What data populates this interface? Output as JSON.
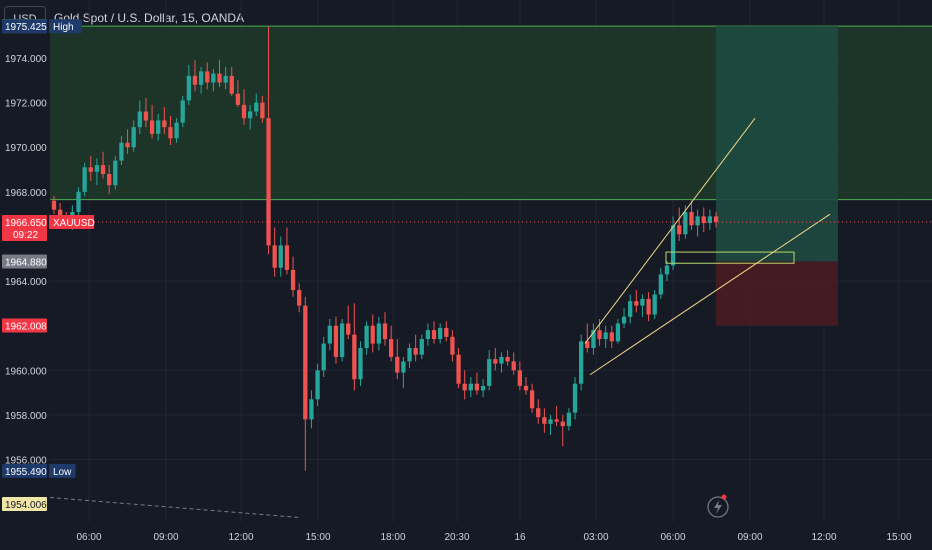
{
  "header": {
    "symbol_button": "USD",
    "title": "Gold Spot / U.S. Dollar, 15, OANDA"
  },
  "colors": {
    "background": "#161a25",
    "grid": "#222633",
    "axis_text": "#d1d4dc",
    "up_candle": "#26a69a",
    "down_candle": "#ef5350",
    "zone_line": "#4caf50",
    "zone_fill": "#1e3a2a",
    "target_fill": "#1e4a40",
    "stop_fill": "#4a1c24",
    "trendline": "#f0d78a",
    "price_label_red": "#f23645",
    "price_label_blue": "#1e3a6a",
    "price_label_gray": "#787b86",
    "price_label_yellow": "#f0e6a8"
  },
  "chart_data": {
    "type": "candlestick",
    "symbol": "XAUUSD",
    "interval_minutes": 15,
    "ylim": [
      1953.2,
      1976.6
    ],
    "y_ticks": [
      "1974.000",
      "1972.000",
      "1970.000",
      "1968.000",
      "1964.000",
      "1960.000",
      "1958.000",
      "1956.000"
    ],
    "x_ticks": [
      "06:00",
      "09:00",
      "12:00",
      "15:00",
      "18:00",
      "20:30",
      "16",
      "03:00",
      "06:00",
      "09:00",
      "12:00",
      "15:00"
    ],
    "price_labels": [
      {
        "value": "1975.431",
        "style": "green"
      },
      {
        "value": "1975.425",
        "tag": "High",
        "style": "blue"
      },
      {
        "value": "1966.650",
        "tag": "XAUUSD",
        "sub": "09:22",
        "style": "red"
      },
      {
        "value": "1964.880",
        "style": "gray"
      },
      {
        "value": "1962.008",
        "style": "red"
      },
      {
        "value": "1955.490",
        "tag": "Low",
        "style": "blue"
      },
      {
        "value": "1954.006",
        "style": "yellow"
      }
    ],
    "zone": {
      "top": 1975.43,
      "bottom": 1967.65
    },
    "current_price": 1966.65,
    "position": {
      "entry": 1964.88,
      "target": 1975.43,
      "stop": 1962.0
    },
    "candles": [
      [
        1967.6,
        1967.8,
        1967.0,
        1967.2
      ],
      [
        1967.2,
        1967.5,
        1966.7,
        1966.9
      ],
      [
        1966.9,
        1967.1,
        1966.4,
        1966.6
      ],
      [
        1966.6,
        1967.4,
        1966.3,
        1967.1
      ],
      [
        1967.1,
        1968.2,
        1966.9,
        1968.0
      ],
      [
        1968.0,
        1969.3,
        1967.8,
        1969.1
      ],
      [
        1969.1,
        1969.6,
        1968.5,
        1968.9
      ],
      [
        1968.9,
        1969.5,
        1968.3,
        1969.2
      ],
      [
        1969.2,
        1969.8,
        1968.6,
        1968.8
      ],
      [
        1968.8,
        1969.2,
        1967.9,
        1968.3
      ],
      [
        1968.3,
        1969.6,
        1968.1,
        1969.4
      ],
      [
        1969.4,
        1970.5,
        1969.2,
        1970.2
      ],
      [
        1970.2,
        1970.8,
        1969.7,
        1970.0
      ],
      [
        1970.0,
        1971.2,
        1969.8,
        1970.9
      ],
      [
        1970.9,
        1972.1,
        1970.6,
        1971.6
      ],
      [
        1971.6,
        1972.2,
        1970.9,
        1971.2
      ],
      [
        1971.2,
        1971.9,
        1970.4,
        1970.6
      ],
      [
        1970.6,
        1971.5,
        1970.3,
        1971.2
      ],
      [
        1971.2,
        1971.8,
        1970.6,
        1970.9
      ],
      [
        1970.9,
        1971.4,
        1970.1,
        1970.4
      ],
      [
        1970.4,
        1971.3,
        1970.2,
        1971.1
      ],
      [
        1971.1,
        1972.3,
        1970.9,
        1972.1
      ],
      [
        1972.1,
        1973.7,
        1971.9,
        1973.2
      ],
      [
        1973.2,
        1973.9,
        1972.5,
        1972.8
      ],
      [
        1972.8,
        1973.6,
        1972.4,
        1973.4
      ],
      [
        1973.4,
        1973.8,
        1972.6,
        1972.9
      ],
      [
        1972.9,
        1973.5,
        1972.5,
        1973.3
      ],
      [
        1973.3,
        1973.9,
        1972.7,
        1972.9
      ],
      [
        1972.9,
        1973.6,
        1972.6,
        1973.2
      ],
      [
        1973.2,
        1973.6,
        1972.3,
        1972.4
      ],
      [
        1972.4,
        1973.0,
        1971.8,
        1971.9
      ],
      [
        1971.9,
        1972.6,
        1971.0,
        1971.3
      ],
      [
        1971.3,
        1971.9,
        1970.8,
        1971.6
      ],
      [
        1971.6,
        1972.4,
        1971.4,
        1972.0
      ],
      [
        1972.0,
        1972.3,
        1971.1,
        1971.3
      ],
      [
        1971.3,
        1975.4,
        1965.2,
        1965.6
      ],
      [
        1965.6,
        1966.4,
        1964.2,
        1964.6
      ],
      [
        1964.6,
        1966.0,
        1964.2,
        1965.6
      ],
      [
        1965.6,
        1966.4,
        1964.3,
        1964.5
      ],
      [
        1964.5,
        1965.1,
        1963.3,
        1963.6
      ],
      [
        1963.6,
        1963.9,
        1962.6,
        1962.9
      ],
      [
        1962.9,
        1963.3,
        1955.5,
        1957.8
      ],
      [
        1957.8,
        1959.1,
        1957.4,
        1958.7
      ],
      [
        1958.7,
        1960.3,
        1958.4,
        1960.0
      ],
      [
        1960.0,
        1961.5,
        1959.7,
        1961.2
      ],
      [
        1961.2,
        1962.3,
        1960.9,
        1962.0
      ],
      [
        1962.0,
        1962.4,
        1960.3,
        1960.6
      ],
      [
        1960.6,
        1962.3,
        1960.4,
        1962.1
      ],
      [
        1962.1,
        1962.9,
        1961.4,
        1961.6
      ],
      [
        1961.6,
        1963.0,
        1959.1,
        1959.6
      ],
      [
        1959.6,
        1961.3,
        1959.3,
        1961.0
      ],
      [
        1961.0,
        1962.2,
        1960.7,
        1962.0
      ],
      [
        1962.0,
        1962.5,
        1960.8,
        1961.2
      ],
      [
        1961.2,
        1962.4,
        1960.9,
        1962.1
      ],
      [
        1962.1,
        1962.6,
        1961.1,
        1961.4
      ],
      [
        1961.4,
        1962.0,
        1960.4,
        1960.6
      ],
      [
        1960.6,
        1961.4,
        1959.6,
        1959.9
      ],
      [
        1959.9,
        1960.6,
        1959.2,
        1960.4
      ],
      [
        1960.4,
        1961.2,
        1960.1,
        1961.0
      ],
      [
        1961.0,
        1961.6,
        1960.4,
        1960.7
      ],
      [
        1960.7,
        1961.6,
        1960.5,
        1961.4
      ],
      [
        1961.4,
        1962.1,
        1961.1,
        1961.8
      ],
      [
        1961.8,
        1962.2,
        1961.2,
        1961.4
      ],
      [
        1961.4,
        1962.1,
        1961.2,
        1961.9
      ],
      [
        1961.9,
        1962.2,
        1961.3,
        1961.5
      ],
      [
        1961.5,
        1961.8,
        1960.4,
        1960.7
      ],
      [
        1960.7,
        1961.0,
        1959.2,
        1959.4
      ],
      [
        1959.4,
        1960.0,
        1958.7,
        1959.1
      ],
      [
        1959.1,
        1959.7,
        1958.8,
        1959.4
      ],
      [
        1959.4,
        1959.9,
        1958.9,
        1959.1
      ],
      [
        1959.1,
        1959.6,
        1958.8,
        1959.3
      ],
      [
        1959.3,
        1960.9,
        1959.1,
        1960.5
      ],
      [
        1960.5,
        1961.0,
        1960.0,
        1960.3
      ],
      [
        1960.3,
        1960.8,
        1959.9,
        1960.6
      ],
      [
        1960.6,
        1960.9,
        1960.2,
        1960.4
      ],
      [
        1960.4,
        1960.8,
        1959.8,
        1960.0
      ],
      [
        1960.0,
        1960.4,
        1959.1,
        1959.3
      ],
      [
        1959.3,
        1959.7,
        1958.9,
        1959.1
      ],
      [
        1959.1,
        1959.4,
        1958.1,
        1958.3
      ],
      [
        1958.3,
        1958.7,
        1957.6,
        1957.9
      ],
      [
        1957.9,
        1958.3,
        1957.2,
        1957.6
      ],
      [
        1957.6,
        1958.0,
        1957.1,
        1957.8
      ],
      [
        1957.8,
        1958.4,
        1957.5,
        1957.7
      ],
      [
        1957.7,
        1958.0,
        1956.6,
        1957.5
      ],
      [
        1957.5,
        1958.3,
        1957.3,
        1958.1
      ],
      [
        1958.1,
        1959.7,
        1957.8,
        1959.4
      ],
      [
        1959.4,
        1961.6,
        1959.1,
        1961.3
      ],
      [
        1961.3,
        1962.1,
        1960.8,
        1961.0
      ],
      [
        1961.0,
        1962.1,
        1960.7,
        1961.8
      ],
      [
        1961.8,
        1962.3,
        1961.1,
        1961.4
      ],
      [
        1961.4,
        1962.0,
        1961.0,
        1961.7
      ],
      [
        1961.7,
        1962.0,
        1961.0,
        1961.3
      ],
      [
        1961.3,
        1962.3,
        1961.2,
        1962.1
      ],
      [
        1962.1,
        1962.8,
        1961.9,
        1962.4
      ],
      [
        1962.4,
        1963.4,
        1962.1,
        1963.1
      ],
      [
        1963.1,
        1963.6,
        1962.6,
        1962.9
      ],
      [
        1962.9,
        1963.4,
        1962.4,
        1963.2
      ],
      [
        1963.2,
        1963.5,
        1962.2,
        1962.5
      ],
      [
        1962.5,
        1963.6,
        1962.3,
        1963.4
      ],
      [
        1963.4,
        1964.6,
        1963.2,
        1964.3
      ],
      [
        1964.3,
        1964.9,
        1964.0,
        1964.7
      ],
      [
        1964.7,
        1966.9,
        1964.5,
        1966.5
      ],
      [
        1966.5,
        1967.3,
        1965.8,
        1966.1
      ],
      [
        1966.1,
        1967.4,
        1965.9,
        1967.1
      ],
      [
        1967.1,
        1967.6,
        1966.3,
        1966.5
      ],
      [
        1966.5,
        1967.2,
        1966.0,
        1966.9
      ],
      [
        1966.9,
        1967.3,
        1966.2,
        1966.6
      ],
      [
        1966.6,
        1967.2,
        1966.3,
        1966.9
      ],
      [
        1966.9,
        1967.1,
        1966.4,
        1966.65
      ]
    ]
  }
}
